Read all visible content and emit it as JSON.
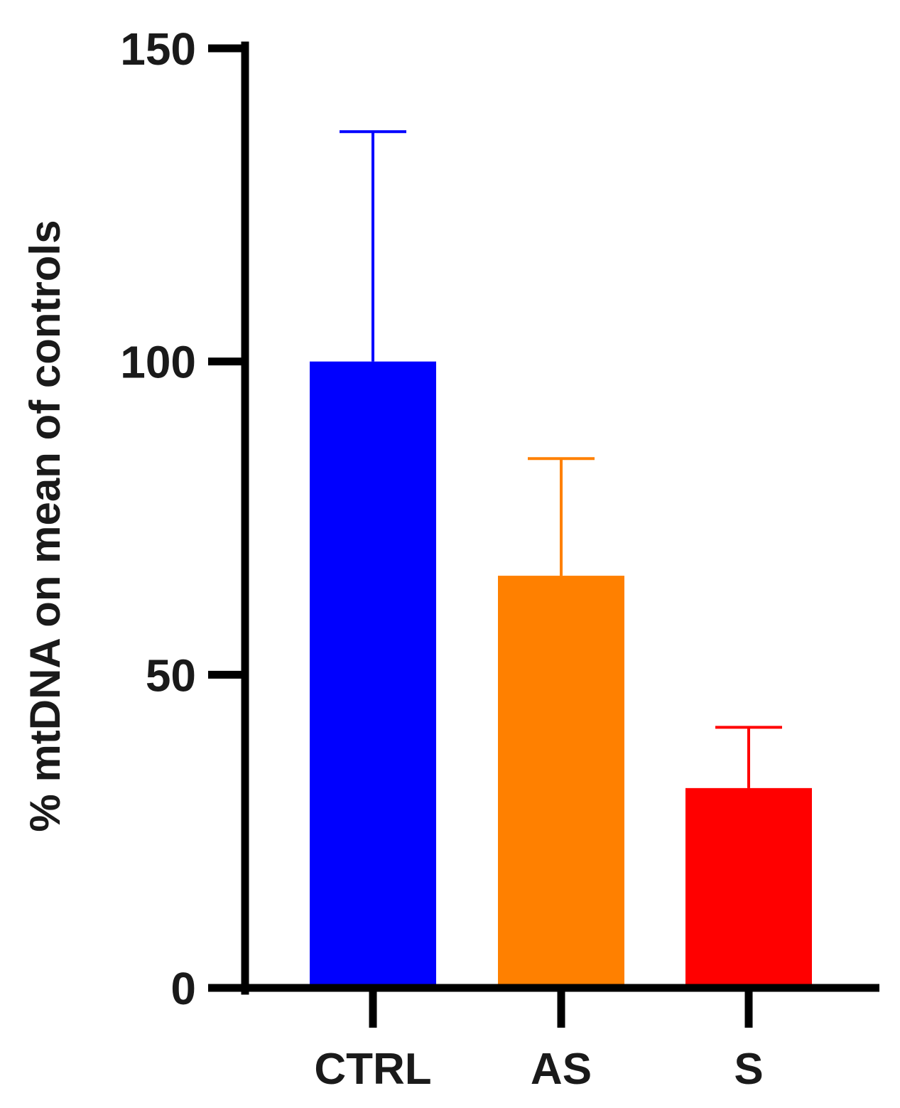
{
  "chart_data": {
    "type": "bar",
    "title": "",
    "xlabel": "",
    "ylabel": "% mtDNA on mean of controls",
    "ylim": [
      0,
      150
    ],
    "yticks": [
      "0",
      "50",
      "100",
      "150"
    ],
    "categories": [
      "CTRL",
      "AS",
      "S"
    ],
    "values": [
      100,
      65.8,
      31.9
    ],
    "error_upper": [
      136.7,
      84.5,
      41.6
    ],
    "colors": [
      "#0000ff",
      "#ff8000",
      "#ff0000"
    ],
    "grid": false,
    "legend": "none"
  }
}
